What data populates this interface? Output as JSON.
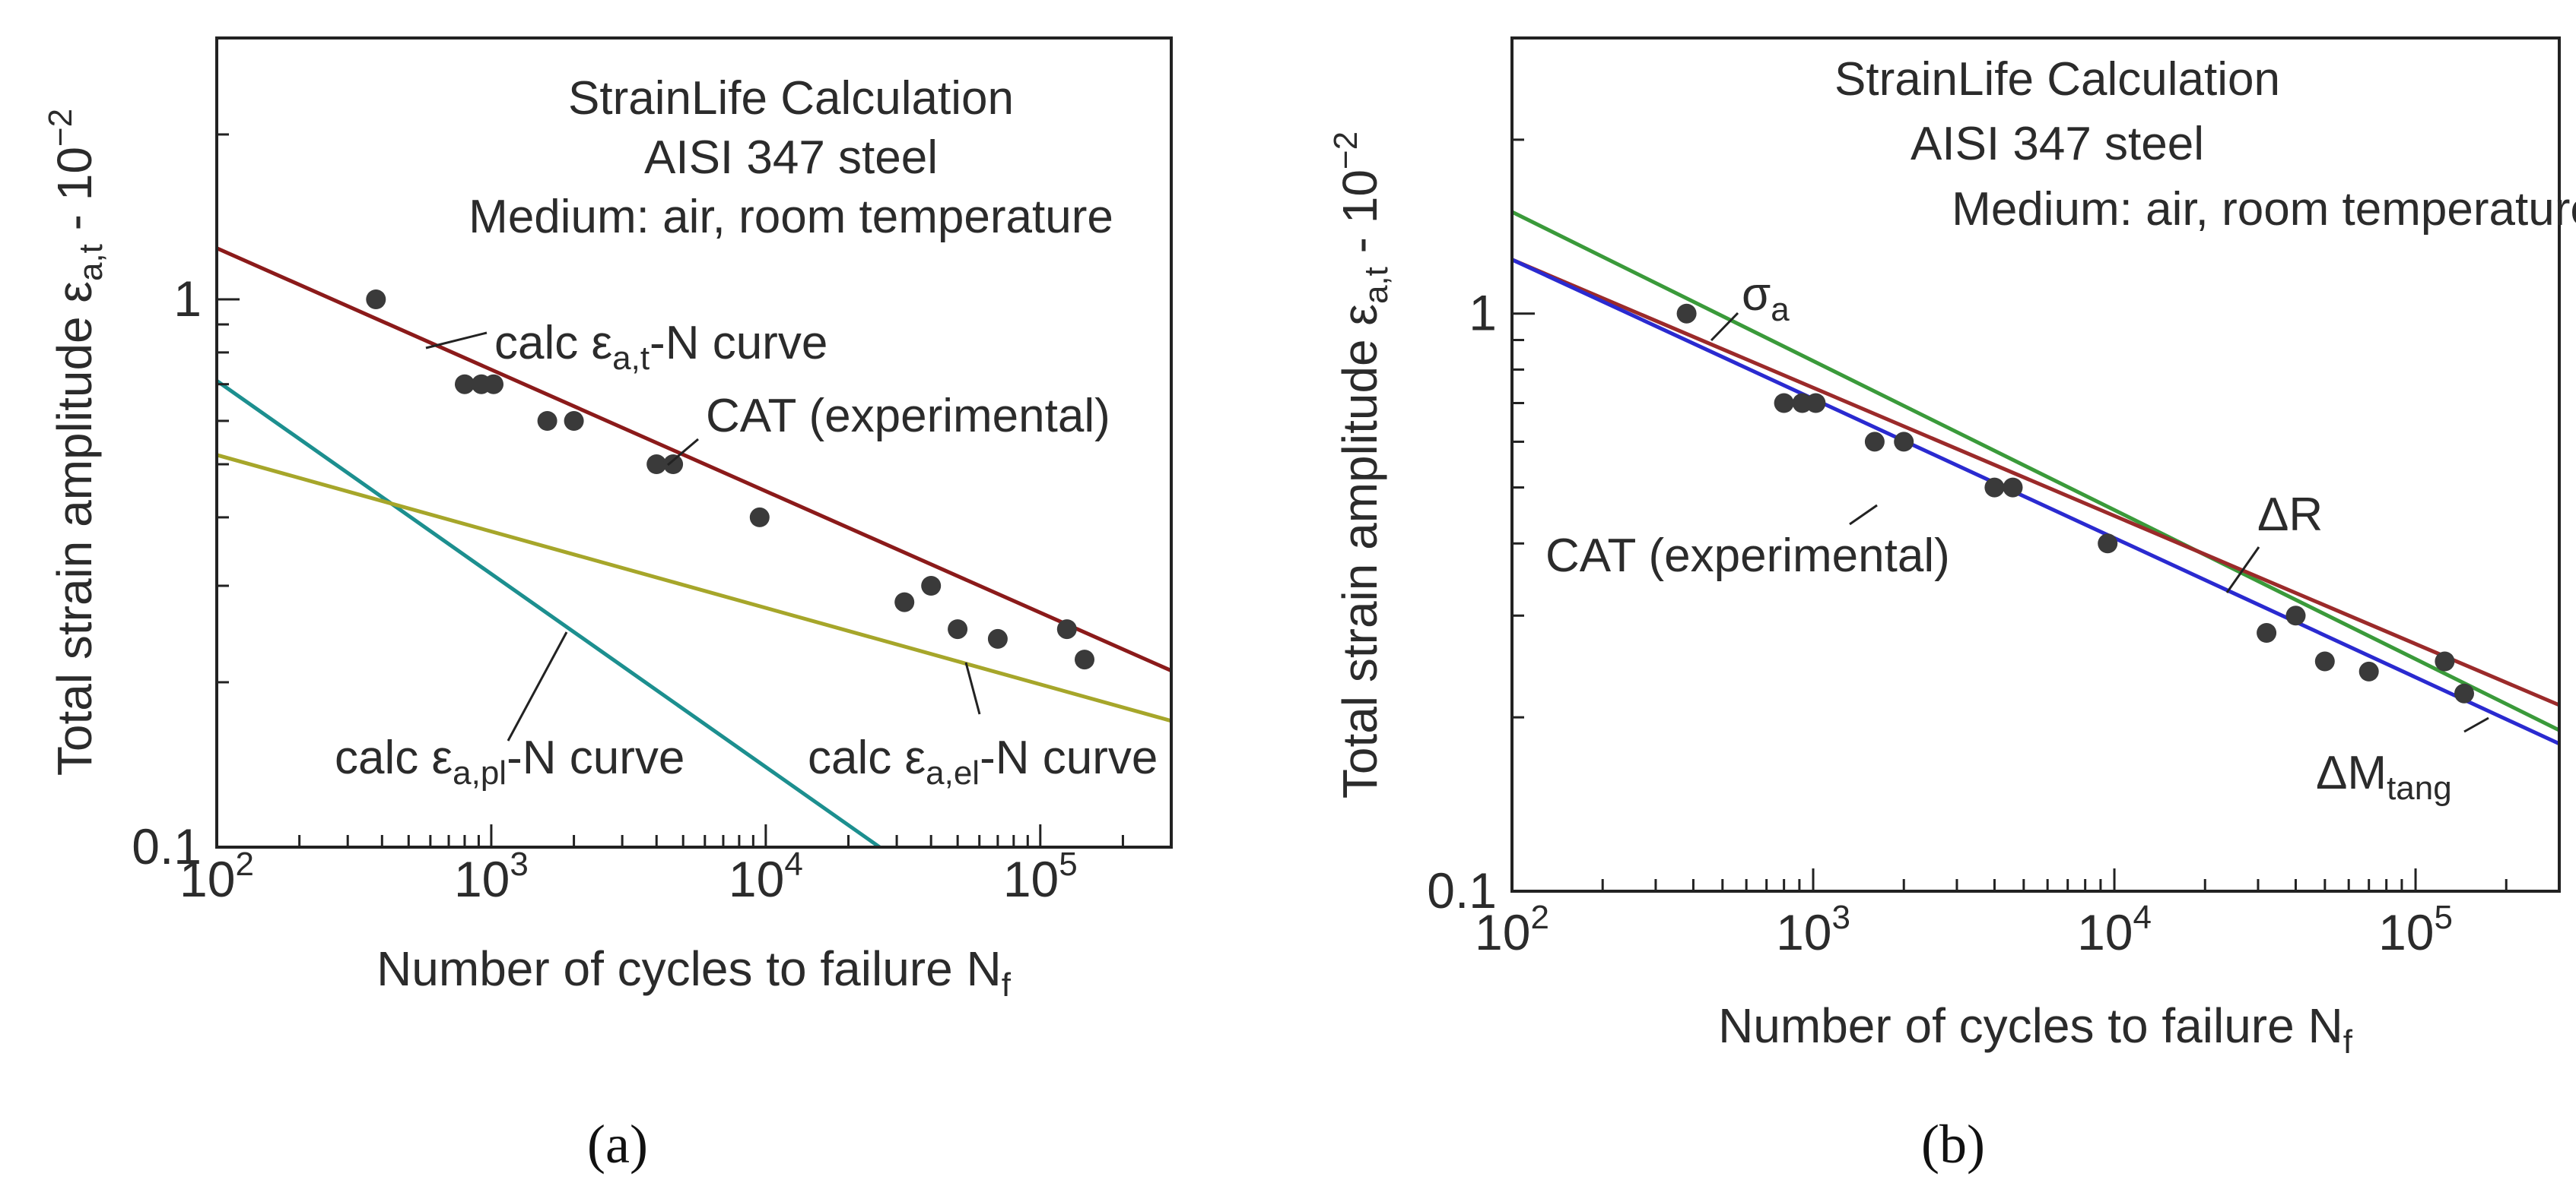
{
  "chart_data": [
    {
      "panel": "(a)",
      "type": "line",
      "x_scale": "log",
      "y_scale": "log",
      "xlim": [
        100,
        300000
      ],
      "ylim": [
        0.1,
        3
      ],
      "xlabel": "Number of cycles to failure N",
      "xlabel_sub": "f",
      "ylabel": "Total strain amplitude ε",
      "ylabel_sub": "a,t",
      "ylabel_tail": " - 10",
      "ylabel_sup": "−2",
      "x_ticks": [
        {
          "value": 100,
          "base": "10",
          "exp": "2"
        },
        {
          "value": 1000,
          "base": "10",
          "exp": "3"
        },
        {
          "value": 10000,
          "base": "10",
          "exp": "4"
        },
        {
          "value": 100000,
          "base": "10",
          "exp": "5"
        }
      ],
      "y_ticks": [
        {
          "value": 0.1,
          "label": "0.1"
        },
        {
          "value": 1,
          "label": "1"
        }
      ],
      "annotations": [
        {
          "lines": [
            "StrainLife Calculation",
            "AISI 347 steel",
            "Medium: air, room temperature"
          ]
        },
        {
          "pre": "calc ε",
          "sub": "a,t",
          "post": "-N curve"
        },
        {
          "text": "CAT (experimental)"
        },
        {
          "pre": "calc ε",
          "sub": "a,pl",
          "post": "-N curve"
        },
        {
          "pre": "calc ε",
          "sub": "a,el",
          "post": "-N curve"
        }
      ],
      "series": [
        {
          "role": "calc-total",
          "color": "#8b1a1a",
          "x": [
            100,
            300000
          ],
          "y": [
            1.24,
            0.21
          ]
        },
        {
          "role": "calc-plastic",
          "color": "#1c8f8f",
          "x": [
            100,
            26000
          ],
          "y": [
            0.71,
            0.1
          ]
        },
        {
          "role": "calc-elastic",
          "color": "#a6a62a",
          "x": [
            100,
            300000
          ],
          "y": [
            0.52,
            0.17
          ]
        },
        {
          "role": "experimental",
          "color": "#3a3a3a",
          "points": [
            [
              380,
              1.0
            ],
            [
              800,
              0.7
            ],
            [
              920,
              0.7
            ],
            [
              1020,
              0.7
            ],
            [
              1600,
              0.6
            ],
            [
              2000,
              0.6
            ],
            [
              4000,
              0.5
            ],
            [
              4600,
              0.5
            ],
            [
              9500,
              0.4
            ],
            [
              32000,
              0.28
            ],
            [
              40000,
              0.3
            ],
            [
              50000,
              0.25
            ],
            [
              70000,
              0.24
            ],
            [
              125000,
              0.25
            ],
            [
              145000,
              0.22
            ]
          ]
        }
      ]
    },
    {
      "panel": "(b)",
      "type": "line",
      "x_scale": "log",
      "y_scale": "log",
      "xlim": [
        100,
        300000
      ],
      "ylim": [
        0.1,
        3
      ],
      "xlabel": "Number of cycles to failure N",
      "xlabel_sub": "f",
      "ylabel": "Total strain amplitude ε",
      "ylabel_sub": "a,t",
      "ylabel_tail": " - 10",
      "ylabel_sup": "−2",
      "x_ticks": [
        {
          "value": 100,
          "base": "10",
          "exp": "2"
        },
        {
          "value": 1000,
          "base": "10",
          "exp": "3"
        },
        {
          "value": 10000,
          "base": "10",
          "exp": "4"
        },
        {
          "value": 100000,
          "base": "10",
          "exp": "5"
        }
      ],
      "y_ticks": [
        {
          "value": 0.1,
          "label": "0.1"
        },
        {
          "value": 1,
          "label": "1"
        }
      ],
      "annotations": [
        {
          "lines": [
            "StrainLife Calculation",
            "AISI 347 steel",
            "Medium: air, room temperature"
          ]
        },
        {
          "pre": "σ",
          "sub": "a",
          "post": ""
        },
        {
          "text": "CAT (experimental)"
        },
        {
          "pre": "ΔR",
          "sub": "",
          "post": ""
        },
        {
          "pre": "ΔM",
          "sub": "tang",
          "post": ""
        }
      ],
      "series": [
        {
          "name": "σa",
          "color": "#3a9a3a",
          "x": [
            100,
            300000
          ],
          "y": [
            1.5,
            0.19
          ]
        },
        {
          "name": "ΔR",
          "color": "#9b2a2a",
          "x": [
            100,
            300000
          ],
          "y": [
            1.24,
            0.21
          ]
        },
        {
          "name": "ΔMtang",
          "color": "#2a2ad0",
          "x": [
            100,
            300000
          ],
          "y": [
            1.24,
            0.18
          ]
        },
        {
          "role": "experimental",
          "color": "#3a3a3a",
          "points": [
            [
              380,
              1.0
            ],
            [
              800,
              0.7
            ],
            [
              920,
              0.7
            ],
            [
              1020,
              0.7
            ],
            [
              1600,
              0.6
            ],
            [
              2000,
              0.6
            ],
            [
              4000,
              0.5
            ],
            [
              4600,
              0.5
            ],
            [
              9500,
              0.4
            ],
            [
              32000,
              0.28
            ],
            [
              40000,
              0.3
            ],
            [
              50000,
              0.25
            ],
            [
              70000,
              0.24
            ],
            [
              125000,
              0.25
            ],
            [
              145000,
              0.22
            ]
          ]
        }
      ]
    }
  ]
}
